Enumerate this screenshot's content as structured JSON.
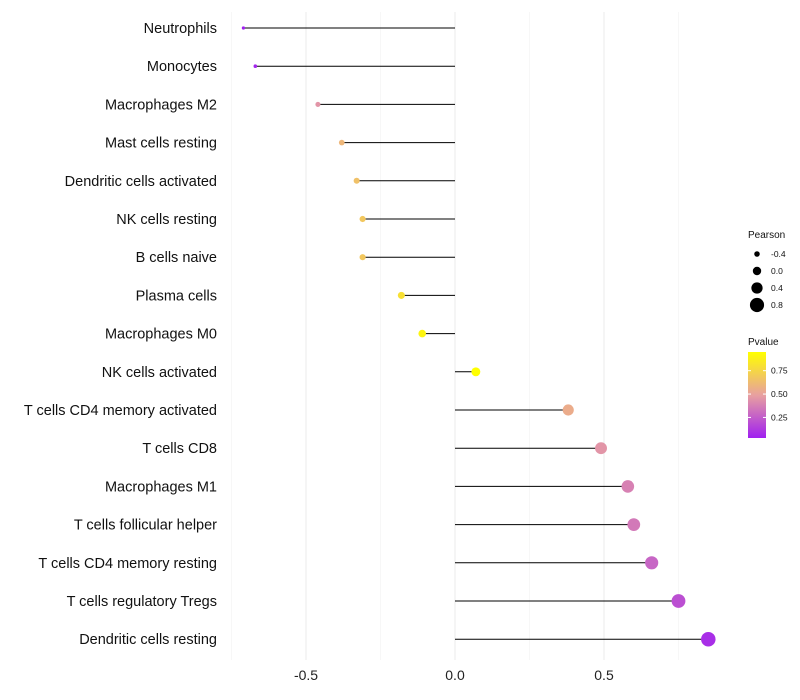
{
  "chart_data": {
    "type": "lollipop",
    "title": "",
    "xlabel": "",
    "ylabel": "",
    "xlim": [
      -0.75,
      0.95
    ],
    "x_ticks": [
      -0.5,
      0.0,
      0.5
    ],
    "x_tick_labels": [
      "-0.5",
      "0.0",
      "0.5"
    ],
    "grid": true,
    "categories": [
      "Neutrophils",
      "Monocytes",
      "Macrophages M2",
      "Mast cells resting",
      "Dendritic cells activated",
      "NK cells resting",
      "B cells naive",
      "Plasma cells",
      "Macrophages M0",
      "NK cells activated",
      "T cells CD4 memory activated",
      "T cells CD8",
      "Macrophages M1",
      "T cells follicular helper",
      "T cells CD4 memory resting",
      "T cells regulatory  Tregs",
      "Dendritic cells resting"
    ],
    "pearson": [
      -0.71,
      -0.67,
      -0.46,
      -0.38,
      -0.33,
      -0.31,
      -0.31,
      -0.18,
      -0.11,
      0.07,
      0.38,
      0.49,
      0.58,
      0.6,
      0.66,
      0.75,
      0.85
    ],
    "pvalue": [
      0.03,
      0.05,
      0.45,
      0.6,
      0.65,
      0.68,
      0.68,
      0.8,
      0.9,
      0.95,
      0.55,
      0.45,
      0.38,
      0.35,
      0.28,
      0.2,
      0.08
    ],
    "legend_position": "right",
    "size_legend": {
      "title": "Pearson",
      "labels": [
        "-0.4",
        "0.0",
        "0.4",
        "0.8"
      ],
      "values": [
        -0.4,
        0.0,
        0.4,
        0.8
      ]
    },
    "color_legend": {
      "title": "Pvalue",
      "labels": [
        "0.75",
        "0.50",
        "0.25"
      ],
      "values": [
        0.75,
        0.5,
        0.25
      ],
      "range": [
        0.03,
        0.95
      ],
      "low_color": "#a020f0",
      "mid_color": "#e8a0a0",
      "high_color": "#ffff00"
    }
  }
}
